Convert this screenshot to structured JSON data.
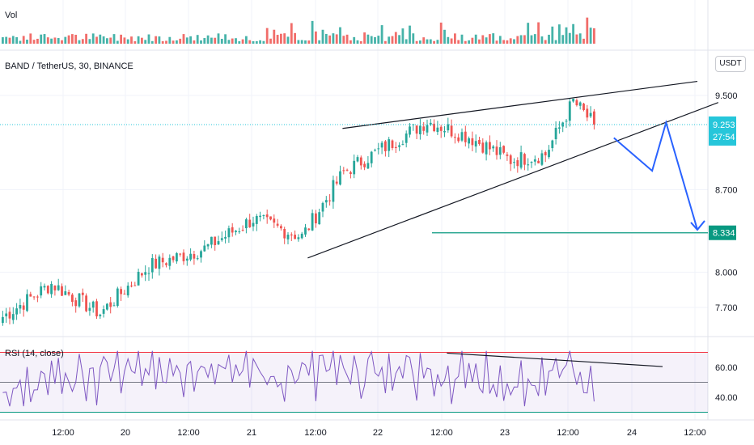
{
  "panes": {
    "volume_label": "Vol",
    "main_title": "BAND / TetherUS, 30, BINANCE",
    "rsi_label": "RSI (14, close)"
  },
  "currency_button": "USDT",
  "price_axis": {
    "ticks": [
      {
        "value": 9.5,
        "label": "9.500"
      },
      {
        "value": 8.7,
        "label": "8.700"
      },
      {
        "value": 8.0,
        "label": "8.000"
      },
      {
        "value": 7.7,
        "label": "7.700"
      }
    ]
  },
  "rsi_axis": {
    "ticks": [
      {
        "value": 60,
        "label": "60.00"
      },
      {
        "value": 40,
        "label": "40.00"
      }
    ]
  },
  "current_price": {
    "label": "9.253",
    "countdown": "27:54",
    "value": 9.253,
    "color": "#26c6da"
  },
  "target_price": {
    "label": "8.334",
    "value": 8.334,
    "color": "#089981"
  },
  "time_axis": {
    "labels": [
      "12:00",
      "20",
      "12:00",
      "21",
      "12:00",
      "22",
      "12:00",
      "23",
      "12:00",
      "24",
      "12:00"
    ]
  },
  "colors": {
    "up": "#26a69a",
    "down": "#ef5350",
    "rsi_line": "#7e57c2",
    "projection": "#2962ff",
    "trend": "#131722"
  },
  "chart_data": {
    "type": "candlestick",
    "symbol": "BAND / TetherUS",
    "interval": "30",
    "exchange": "BINANCE",
    "price_range": [
      7.55,
      9.75
    ],
    "rsi_range": [
      30,
      75
    ],
    "rsi_levels": [
      70,
      50,
      30
    ],
    "anchor_points": [
      {
        "bar": 0,
        "close": 7.62
      },
      {
        "bar": 14,
        "close": 7.9
      },
      {
        "bar": 28,
        "close": 7.65
      },
      {
        "bar": 42,
        "close": 8.05
      },
      {
        "bar": 58,
        "close": 8.2
      },
      {
        "bar": 72,
        "close": 8.45
      },
      {
        "bar": 86,
        "close": 8.3
      },
      {
        "bar": 98,
        "close": 8.85
      },
      {
        "bar": 112,
        "close": 9.1
      },
      {
        "bar": 122,
        "close": 9.28
      },
      {
        "bar": 134,
        "close": 9.15
      },
      {
        "bar": 146,
        "close": 8.95
      },
      {
        "bar": 156,
        "close": 9.0
      },
      {
        "bar": 164,
        "close": 9.45
      },
      {
        "bar": 170,
        "close": 9.253
      }
    ],
    "drawings": {
      "upper_trendline": [
        {
          "bar": 98,
          "price": 9.22
        },
        {
          "bar": 200,
          "price": 9.62
        }
      ],
      "lower_trendline": [
        {
          "bar": 88,
          "price": 8.12
        },
        {
          "bar": 206,
          "price": 9.44
        }
      ],
      "projection_path": [
        {
          "bar": 176,
          "price": 9.14
        },
        {
          "bar": 187,
          "price": 8.86
        },
        {
          "bar": 191,
          "price": 9.27
        },
        {
          "bar": 200,
          "price": 8.36
        }
      ],
      "target_line_price": 8.334,
      "rsi_trendline": [
        {
          "bar": 128,
          "rsi": 69.5
        },
        {
          "bar": 190,
          "rsi": 60.5
        }
      ]
    }
  }
}
